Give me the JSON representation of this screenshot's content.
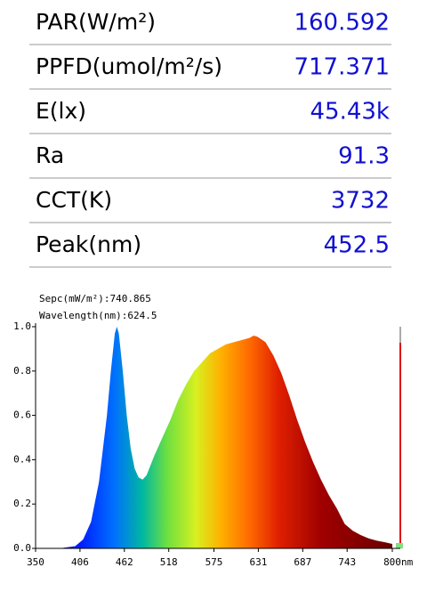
{
  "table": {
    "rows": [
      {
        "label": "PAR(W/m²)",
        "value": "160.592"
      },
      {
        "label": "PPFD(umol/m²/s)",
        "value": "717.371"
      },
      {
        "label": "E(lx)",
        "value": "45.43k"
      },
      {
        "label": "Ra",
        "value": "91.3"
      },
      {
        "label": "CCT(K)",
        "value": "3732"
      },
      {
        "label": "Peak(nm)",
        "value": "452.5"
      }
    ]
  },
  "chart_data": {
    "type": "area",
    "annotations": [
      "Sepc(mW/m²):740.865",
      "Wavelength(nm):624.5"
    ],
    "xlabel": "nm",
    "x": [
      350,
      380,
      400,
      410,
      420,
      430,
      440,
      445,
      450,
      452.5,
      455,
      460,
      465,
      470,
      475,
      480,
      485,
      490,
      500,
      510,
      520,
      530,
      540,
      550,
      560,
      570,
      580,
      590,
      600,
      610,
      620,
      625,
      630,
      640,
      650,
      660,
      670,
      680,
      690,
      700,
      710,
      720,
      730,
      740,
      750,
      760,
      770,
      780,
      790,
      800
    ],
    "values": [
      0,
      0,
      0.01,
      0.04,
      0.12,
      0.3,
      0.6,
      0.8,
      0.97,
      1.0,
      0.97,
      0.8,
      0.6,
      0.45,
      0.36,
      0.32,
      0.31,
      0.33,
      0.42,
      0.5,
      0.58,
      0.67,
      0.74,
      0.8,
      0.84,
      0.88,
      0.9,
      0.92,
      0.93,
      0.94,
      0.95,
      0.96,
      0.955,
      0.93,
      0.87,
      0.79,
      0.69,
      0.58,
      0.48,
      0.39,
      0.31,
      0.24,
      0.18,
      0.11,
      0.08,
      0.06,
      0.045,
      0.035,
      0.028,
      0.02
    ],
    "xlim": [
      350,
      800
    ],
    "ylim": [
      0,
      1
    ],
    "xticks": [
      350,
      406,
      462,
      518,
      575,
      631,
      687,
      743,
      800
    ],
    "yticks": [
      {
        "value": 0,
        "label": "0.0"
      },
      0.2,
      0.4,
      0.6,
      0.8,
      {
        "value": 1,
        "label": "1.0"
      }
    ]
  }
}
